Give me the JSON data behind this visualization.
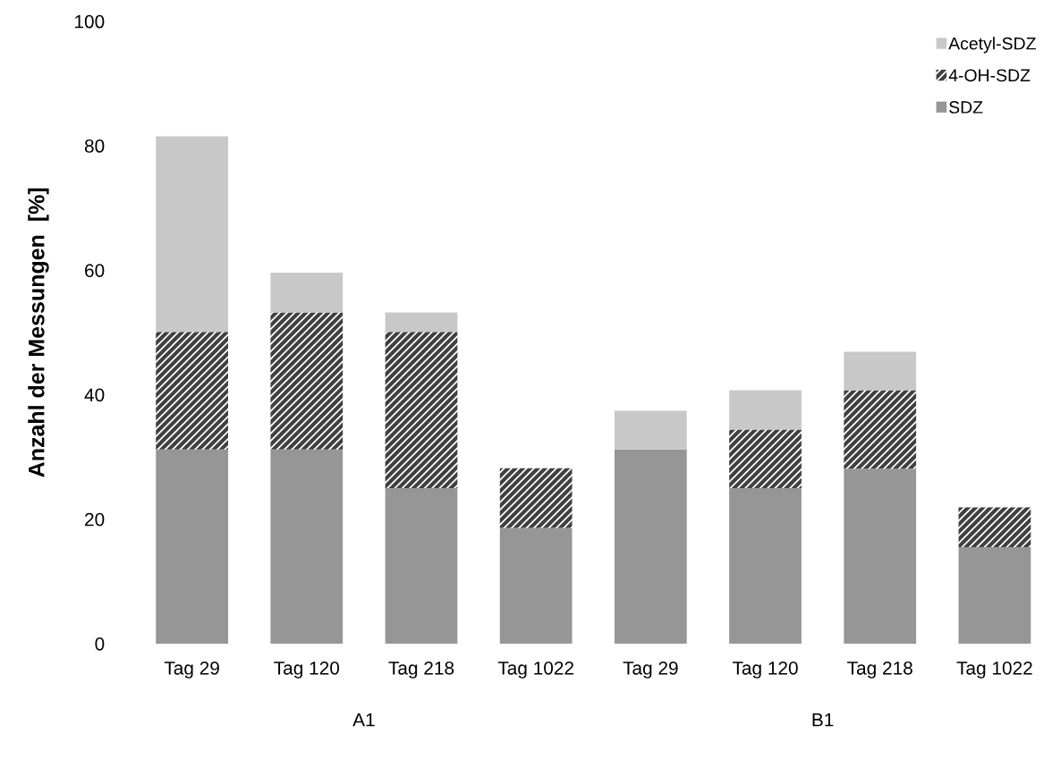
{
  "chart_data": {
    "type": "bar",
    "stacked": true,
    "ylabel": "Anzahl der Messungen  [%]",
    "categories": [
      "Tag 29",
      "Tag 120",
      "Tag 218",
      "Tag 1022",
      "Tag 29",
      "Tag 120",
      "Tag 218",
      "Tag 1022"
    ],
    "series": [
      {
        "name": "SDZ",
        "color": "#969696",
        "values": [
          31.2,
          31.2,
          25.0,
          18.6,
          31.2,
          25.0,
          28.1,
          15.5
        ]
      },
      {
        "name": "4-OH-SDZ",
        "color": "#404040",
        "values": [
          18.9,
          22.0,
          25.1,
          9.6,
          0,
          9.4,
          12.6,
          6.4
        ]
      },
      {
        "name": "Acetyl-SDZ",
        "color": "#c8c8c8",
        "values": [
          31.4,
          6.4,
          3.1,
          0,
          6.2,
          6.3,
          6.2,
          0
        ]
      }
    ],
    "ylim": [
      0,
      100
    ],
    "yticks": [
      0,
      20,
      40,
      60,
      80,
      100
    ],
    "grid": false,
    "legend": "top right",
    "annotations": [
      "A1",
      "B1"
    ]
  }
}
